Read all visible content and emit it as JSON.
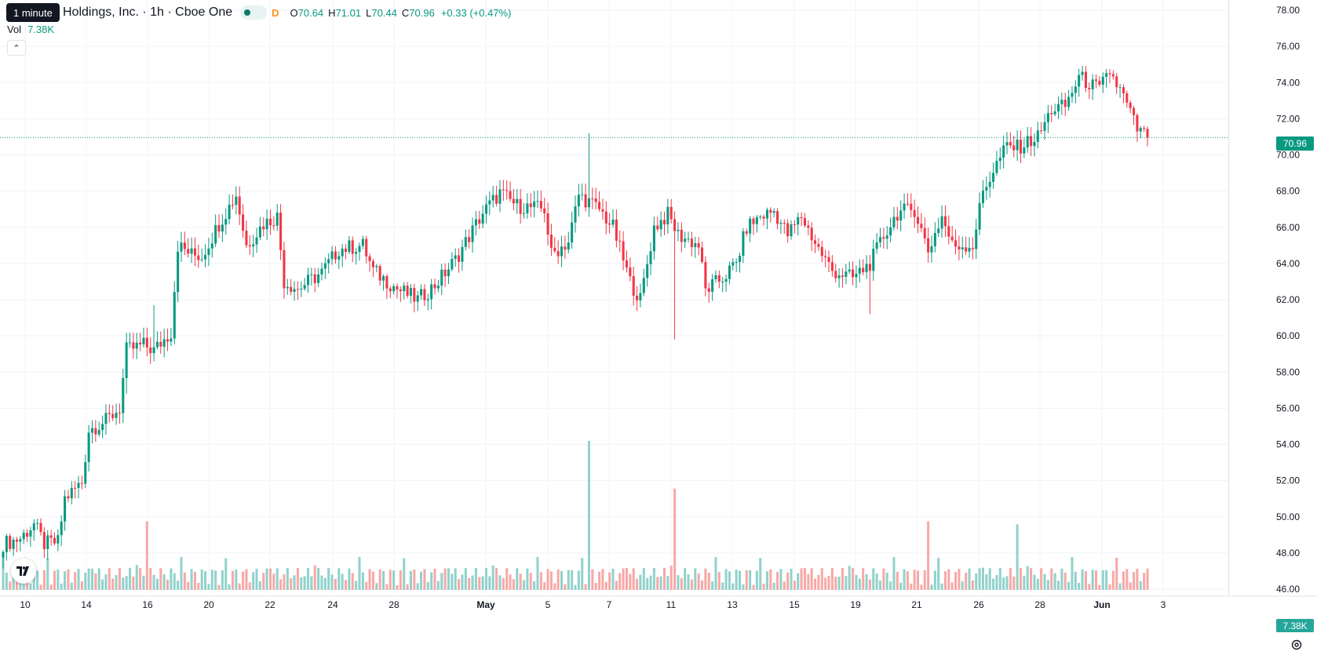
{
  "header": {
    "interval_tooltip": "1 minute",
    "symbol_title": "Holdings, Inc. · 1h · Cboe One",
    "delay_badge": "D",
    "ohlc": [
      {
        "key": "O",
        "value": "70.64"
      },
      {
        "key": "H",
        "value": "71.01"
      },
      {
        "key": "L",
        "value": "70.44"
      },
      {
        "key": "C",
        "value": "70.96"
      }
    ],
    "change": "+0.33 (+0.47%)"
  },
  "volume_legend": {
    "label": "Vol",
    "value": "7.38K"
  },
  "price_axis_label": "70.96",
  "volume_axis_label": "7.38K",
  "colors": {
    "up": "#089981",
    "down": "#f23645",
    "vol_up": "#92d2cc",
    "vol_down": "#f7a9a7",
    "grid": "#f0f3fa",
    "axis_text": "#131722",
    "last_price_line": "#089981"
  },
  "icons": {
    "collapse": "chevron-up-icon",
    "logo": "tradingview-logo",
    "settings": "settings-icon"
  },
  "chart_data": {
    "type": "candlestick",
    "interval": "1h",
    "y_axis": {
      "ticks": [
        "78.00",
        "76.00",
        "74.00",
        "72.00",
        "70.00",
        "68.00",
        "66.00",
        "64.00",
        "62.00",
        "60.00",
        "58.00",
        "56.00",
        "54.00",
        "52.00",
        "50.00",
        "48.00",
        "46.00"
      ],
      "range": [
        45.5,
        78.5
      ]
    },
    "x_axis": {
      "labels": [
        {
          "text": "10",
          "bold": false
        },
        {
          "text": "14",
          "bold": false
        },
        {
          "text": "16",
          "bold": false
        },
        {
          "text": "20",
          "bold": false
        },
        {
          "text": "22",
          "bold": false
        },
        {
          "text": "24",
          "bold": false
        },
        {
          "text": "28",
          "bold": false
        },
        {
          "text": "May",
          "bold": true
        },
        {
          "text": "5",
          "bold": false
        },
        {
          "text": "7",
          "bold": false
        },
        {
          "text": "11",
          "bold": false
        },
        {
          "text": "13",
          "bold": false
        },
        {
          "text": "15",
          "bold": false
        },
        {
          "text": "19",
          "bold": false
        },
        {
          "text": "21",
          "bold": false
        },
        {
          "text": "26",
          "bold": false
        },
        {
          "text": "28",
          "bold": false
        },
        {
          "text": "Jun",
          "bold": true
        },
        {
          "text": "3",
          "bold": false
        }
      ]
    },
    "last_price": 70.96,
    "grid": true,
    "anchors": [
      [
        0,
        48.5
      ],
      [
        5,
        48.8
      ],
      [
        9,
        49.6
      ],
      [
        12,
        48.5
      ],
      [
        16,
        48.6
      ],
      [
        18,
        51.0
      ],
      [
        23,
        51.9
      ],
      [
        25,
        54.8
      ],
      [
        30,
        55.3
      ],
      [
        34,
        56.0
      ],
      [
        36,
        59.2
      ],
      [
        41,
        59.5
      ],
      [
        44,
        59.2
      ],
      [
        49,
        60.2
      ],
      [
        51,
        65.0
      ],
      [
        55,
        64.5
      ],
      [
        58,
        64.4
      ],
      [
        63,
        66.2
      ],
      [
        68,
        67.8
      ],
      [
        71,
        65.0
      ],
      [
        76,
        66.2
      ],
      [
        80,
        66.6
      ],
      [
        82,
        63.0
      ],
      [
        86,
        62.6
      ],
      [
        93,
        63.5
      ],
      [
        98,
        64.8
      ],
      [
        105,
        65.0
      ],
      [
        108,
        63.6
      ],
      [
        115,
        62.6
      ],
      [
        121,
        62.0
      ],
      [
        126,
        62.8
      ],
      [
        132,
        64.2
      ],
      [
        140,
        66.8
      ],
      [
        145,
        67.9
      ],
      [
        150,
        67.2
      ],
      [
        158,
        67.0
      ],
      [
        160,
        64.5
      ],
      [
        165,
        65.2
      ],
      [
        168,
        67.8
      ],
      [
        174,
        67.0
      ],
      [
        178,
        66.0
      ],
      [
        183,
        63.0
      ],
      [
        186,
        62.0
      ],
      [
        190,
        66.0
      ],
      [
        194,
        66.7
      ],
      [
        197,
        65.6
      ],
      [
        203,
        65.0
      ],
      [
        205,
        62.5
      ],
      [
        210,
        63.2
      ],
      [
        214,
        64.0
      ],
      [
        217,
        66.0
      ],
      [
        221,
        66.6
      ],
      [
        225,
        66.9
      ],
      [
        229,
        65.6
      ],
      [
        233,
        66.6
      ],
      [
        238,
        64.8
      ],
      [
        242,
        63.6
      ],
      [
        248,
        63.2
      ],
      [
        253,
        64.0
      ],
      [
        257,
        65.5
      ],
      [
        261,
        66.8
      ],
      [
        266,
        67.0
      ],
      [
        270,
        64.7
      ],
      [
        274,
        66.6
      ],
      [
        277,
        65.0
      ],
      [
        283,
        65.0
      ],
      [
        286,
        68.0
      ],
      [
        290,
        69.5
      ],
      [
        293,
        70.5
      ],
      [
        296,
        70.4
      ],
      [
        302,
        71.0
      ],
      [
        306,
        72.5
      ],
      [
        310,
        72.7
      ],
      [
        314,
        74.3
      ],
      [
        320,
        73.6
      ],
      [
        323,
        74.6
      ],
      [
        327,
        73.2
      ],
      [
        331,
        71.4
      ],
      [
        334,
        70.96
      ]
    ],
    "spikes": [
      {
        "bar": 171,
        "kind": "high",
        "value": 71.2
      },
      {
        "bar": 196,
        "kind": "low",
        "value": 59.8
      },
      {
        "bar": 253,
        "kind": "low",
        "value": 61.2
      },
      {
        "bar": 36,
        "kind": "low",
        "value": 56.8
      },
      {
        "bar": 44,
        "kind": "high",
        "value": 61.7
      }
    ],
    "volume_spikes": [
      {
        "bar": 171,
        "height": 5.0
      },
      {
        "bar": 196,
        "height": 3.4
      },
      {
        "bar": 42,
        "height": 2.3
      },
      {
        "bar": 270,
        "height": 2.3
      },
      {
        "bar": 296,
        "height": 2.2
      }
    ]
  }
}
